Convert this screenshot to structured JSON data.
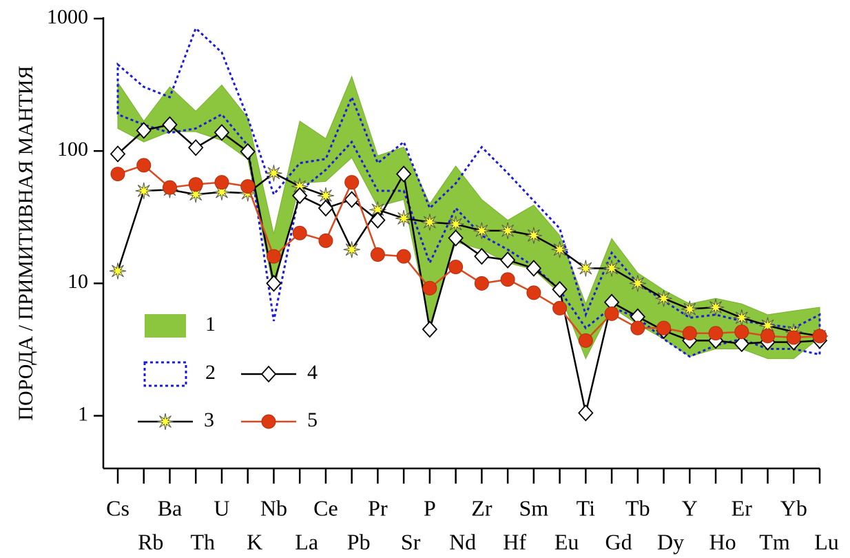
{
  "chart_data": {
    "type": "spider",
    "y_label": "ПОРОДА / ПРИМИТИВНАЯ МАНТИЯ",
    "categories": [
      "Cs",
      "Rb",
      "Ba",
      "Th",
      "U",
      "K",
      "Nb",
      "La",
      "Ce",
      "Pb",
      "Pr",
      "Sr",
      "P",
      "Nd",
      "Zr",
      "Hf",
      "Sm",
      "Eu",
      "Ti",
      "Gd",
      "Tb",
      "Dy",
      "Y",
      "Ho",
      "Er",
      "Tm",
      "Yb",
      "Lu"
    ],
    "yscale": "log",
    "ylim": [
      0.4,
      1000
    ],
    "yticks": [
      1,
      10,
      100,
      1000
    ],
    "legend": "lower-left",
    "series": [
      {
        "name": "1",
        "kind": "band",
        "color": "#8cc63e",
        "upper": [
          330,
          168,
          305,
          200,
          315,
          178,
          23.6,
          168,
          124,
          366,
          92,
          107,
          40,
          77,
          43,
          30,
          39,
          23,
          7,
          21.8,
          12,
          8.9,
          7,
          7.7,
          7,
          5.8,
          6.2,
          6.6
        ],
        "lower": [
          148,
          117,
          140,
          140,
          120,
          87,
          8.9,
          57,
          59,
          89,
          38,
          43,
          4.9,
          20.5,
          18,
          14.3,
          12.7,
          8.4,
          2.7,
          6.6,
          4.9,
          3.8,
          2.8,
          3.2,
          3.2,
          2.7,
          2.7,
          3.9
        ]
      },
      {
        "name": "2",
        "kind": "outline",
        "color": "#1c1cd8",
        "upper": [
          450,
          305,
          255,
          845,
          555,
          178,
          47,
          81,
          87,
          255,
          81,
          117,
          37,
          57,
          107,
          68,
          42,
          26,
          5.8,
          17,
          10,
          7.4,
          5.5,
          5.8,
          5.2,
          4.9,
          4.6,
          5.8
        ],
        "lower": [
          189,
          158,
          137,
          148,
          189,
          110,
          5.2,
          50,
          72,
          117,
          50,
          50,
          14.3,
          37,
          23,
          18,
          13.5,
          8.9,
          4.6,
          6.6,
          5.5,
          3.8,
          2.8,
          3.4,
          3.8,
          3.2,
          3.2,
          2.9
        ]
      },
      {
        "name": "3",
        "kind": "line",
        "color": "#000000",
        "marker": "star",
        "marker_color": "#ffff33",
        "values": [
          12.4,
          50,
          51,
          47,
          49,
          48,
          68,
          54,
          46,
          18,
          36,
          31,
          29,
          28,
          25,
          25,
          23,
          18,
          13,
          13,
          10,
          7.7,
          6.4,
          6.6,
          5.5,
          4.8,
          4.3,
          4.0
        ]
      },
      {
        "name": "4",
        "kind": "line",
        "color": "#000000",
        "marker": "diamond",
        "marker_color": "#ffffff",
        "values": [
          95,
          143,
          158,
          106,
          138,
          99,
          10,
          46,
          37,
          43,
          30,
          67,
          4.5,
          22,
          16,
          15,
          13,
          9,
          1.05,
          7.2,
          5.6,
          4.4,
          3.7,
          3.7,
          3.5,
          3.6,
          3.6,
          3.7
        ]
      },
      {
        "name": "5",
        "kind": "line",
        "color": "#d94a1e",
        "marker": "circle",
        "marker_color": "#dd3a12",
        "values": [
          67,
          78,
          53,
          56,
          58,
          54,
          16,
          24,
          21,
          58,
          16.5,
          16,
          9.2,
          13.3,
          10,
          10.7,
          8.5,
          6.5,
          3.7,
          5.9,
          4.6,
          4.6,
          4.2,
          4.2,
          4.3,
          4.0,
          3.9,
          4.0
        ]
      }
    ]
  }
}
